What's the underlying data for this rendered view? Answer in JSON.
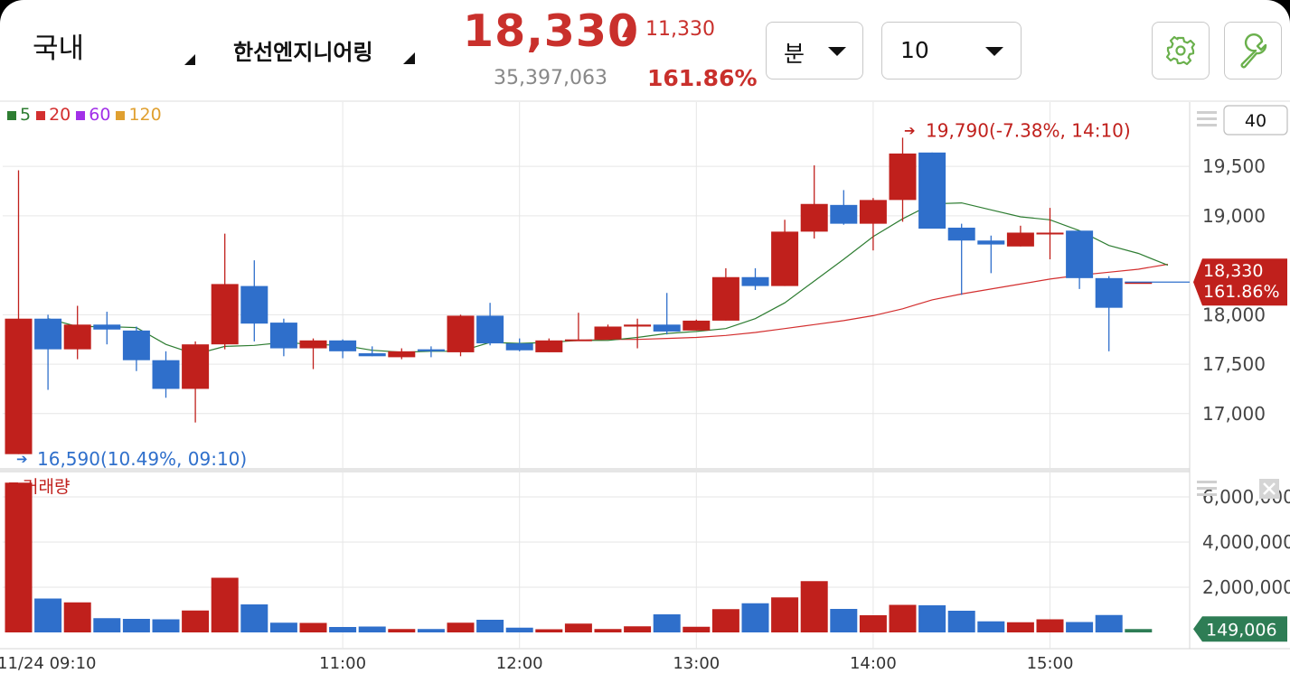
{
  "header": {
    "market": "국내",
    "stock_name": "한선엔지니어링",
    "price": "18,330",
    "change_arrow": "▲",
    "change": "11,330",
    "volume": "35,397,063",
    "change_pct": "161.86%",
    "interval_unit": "분",
    "interval_value": "10",
    "settings_icon": "gear-icon",
    "tools_icon": "wrench-icon"
  },
  "colors": {
    "up": "#c0201c",
    "down": "#2f6fcb",
    "ma5": "#2e7d32",
    "ma20": "#d32f2f",
    "ma60": "#a230e8",
    "ma120": "#e0a030",
    "volume_badge": "#2e7d55"
  },
  "chart_data": {
    "type": "candlestick",
    "interval": "10min",
    "date_label": "11/24 09:10",
    "x_ticks": [
      "11:00",
      "12:00",
      "13:00",
      "14:00",
      "15:00"
    ],
    "price_axis": {
      "ticks": [
        "19,500",
        "19,000",
        "18,000",
        "17,500",
        "17,000"
      ],
      "tick_values": [
        19500,
        19000,
        18000,
        17500,
        17000
      ],
      "range": [
        16450,
        20150
      ]
    },
    "volume_axis": {
      "ticks": [
        "6,000,000",
        "4,000,000",
        "2,000,000"
      ],
      "tick_values": [
        6000000,
        4000000,
        2000000
      ],
      "range": [
        0,
        7000000
      ]
    },
    "legend": [
      {
        "label": "5",
        "color": "#2e7d32"
      },
      {
        "label": "20",
        "color": "#d32f2f"
      },
      {
        "label": "60",
        "color": "#a230e8"
      },
      {
        "label": "120",
        "color": "#e0a030"
      }
    ],
    "count_box": "40",
    "volume_title": "거래량",
    "high_annotation": "19,790(-7.38%, 14:10)",
    "low_annotation": "16,590(10.49%, 09:10)",
    "last_price_badge": [
      "18,330",
      "161.86%"
    ],
    "last_volume_badge": "149,006",
    "candles": [
      {
        "o": 16590,
        "h": 19460,
        "l": 16590,
        "c": 17960,
        "v": 6630000
      },
      {
        "o": 17960,
        "h": 18000,
        "l": 17240,
        "c": 17650,
        "v": 1500000
      },
      {
        "o": 17650,
        "h": 18090,
        "l": 17550,
        "c": 17900,
        "v": 1330000
      },
      {
        "o": 17900,
        "h": 18030,
        "l": 17700,
        "c": 17850,
        "v": 630000
      },
      {
        "o": 17840,
        "h": 17880,
        "l": 17430,
        "c": 17540,
        "v": 600000
      },
      {
        "o": 17540,
        "h": 17630,
        "l": 17160,
        "c": 17250,
        "v": 580000
      },
      {
        "o": 17250,
        "h": 17730,
        "l": 16910,
        "c": 17700,
        "v": 970000
      },
      {
        "o": 17700,
        "h": 18820,
        "l": 17650,
        "c": 18310,
        "v": 2420000
      },
      {
        "o": 18290,
        "h": 18550,
        "l": 17730,
        "c": 17910,
        "v": 1240000
      },
      {
        "o": 17920,
        "h": 17960,
        "l": 17580,
        "c": 17660,
        "v": 430000
      },
      {
        "o": 17660,
        "h": 17760,
        "l": 17450,
        "c": 17740,
        "v": 420000
      },
      {
        "o": 17740,
        "h": 17750,
        "l": 17560,
        "c": 17630,
        "v": 240000
      },
      {
        "o": 17610,
        "h": 17680,
        "l": 17580,
        "c": 17580,
        "v": 260000
      },
      {
        "o": 17570,
        "h": 17660,
        "l": 17550,
        "c": 17630,
        "v": 150000
      },
      {
        "o": 17650,
        "h": 17680,
        "l": 17570,
        "c": 17630,
        "v": 150000
      },
      {
        "o": 17620,
        "h": 18000,
        "l": 17580,
        "c": 17990,
        "v": 430000
      },
      {
        "o": 17990,
        "h": 18120,
        "l": 17690,
        "c": 17710,
        "v": 560000
      },
      {
        "o": 17710,
        "h": 17760,
        "l": 17630,
        "c": 17640,
        "v": 210000
      },
      {
        "o": 17620,
        "h": 17760,
        "l": 17620,
        "c": 17740,
        "v": 140000
      },
      {
        "o": 17740,
        "h": 18020,
        "l": 17740,
        "c": 17750,
        "v": 390000
      },
      {
        "o": 17750,
        "h": 17900,
        "l": 17750,
        "c": 17880,
        "v": 150000
      },
      {
        "o": 17880,
        "h": 17960,
        "l": 17660,
        "c": 17900,
        "v": 270000
      },
      {
        "o": 17900,
        "h": 18220,
        "l": 17800,
        "c": 17830,
        "v": 800000
      },
      {
        "o": 17840,
        "h": 17950,
        "l": 17840,
        "c": 17940,
        "v": 250000
      },
      {
        "o": 17940,
        "h": 18470,
        "l": 17940,
        "c": 18380,
        "v": 1030000
      },
      {
        "o": 18380,
        "h": 18470,
        "l": 18250,
        "c": 18290,
        "v": 1290000
      },
      {
        "o": 18290,
        "h": 18960,
        "l": 18290,
        "c": 18840,
        "v": 1550000
      },
      {
        "o": 18840,
        "h": 19510,
        "l": 18770,
        "c": 19120,
        "v": 2270000
      },
      {
        "o": 19110,
        "h": 19260,
        "l": 18910,
        "c": 18920,
        "v": 1040000
      },
      {
        "o": 18920,
        "h": 19180,
        "l": 18650,
        "c": 19160,
        "v": 760000
      },
      {
        "o": 19160,
        "h": 19790,
        "l": 18940,
        "c": 19630,
        "v": 1220000
      },
      {
        "o": 19640,
        "h": 19640,
        "l": 18880,
        "c": 18870,
        "v": 1200000
      },
      {
        "o": 18880,
        "h": 18920,
        "l": 18200,
        "c": 18750,
        "v": 960000
      },
      {
        "o": 18750,
        "h": 18800,
        "l": 18420,
        "c": 18710,
        "v": 490000
      },
      {
        "o": 18690,
        "h": 18900,
        "l": 18690,
        "c": 18830,
        "v": 450000
      },
      {
        "o": 18830,
        "h": 19080,
        "l": 18560,
        "c": 18830,
        "v": 580000
      },
      {
        "o": 18850,
        "h": 18850,
        "l": 18260,
        "c": 18370,
        "v": 460000
      },
      {
        "o": 18370,
        "h": 18390,
        "l": 17630,
        "c": 18070,
        "v": 770000
      },
      {
        "o": 18330,
        "h": 18330,
        "l": 18330,
        "c": 18330,
        "v": 149006
      }
    ],
    "ma5": [
      [
        1,
        17960
      ],
      [
        2,
        17880
      ],
      [
        3,
        17880
      ],
      [
        4,
        17870
      ],
      [
        5,
        17700
      ],
      [
        6,
        17600
      ],
      [
        7,
        17680
      ],
      [
        8,
        17690
      ],
      [
        9,
        17720
      ],
      [
        10,
        17700
      ],
      [
        11,
        17690
      ],
      [
        12,
        17640
      ],
      [
        13,
        17620
      ],
      [
        14,
        17630
      ],
      [
        15,
        17630
      ],
      [
        16,
        17720
      ],
      [
        17,
        17710
      ],
      [
        18,
        17720
      ],
      [
        19,
        17740
      ],
      [
        20,
        17740
      ],
      [
        21,
        17770
      ],
      [
        22,
        17810
      ],
      [
        23,
        17830
      ],
      [
        24,
        17860
      ],
      [
        25,
        17960
      ],
      [
        26,
        18120
      ],
      [
        27,
        18340
      ],
      [
        28,
        18560
      ],
      [
        29,
        18790
      ],
      [
        30,
        18970
      ],
      [
        31,
        19120
      ],
      [
        32,
        19130
      ],
      [
        33,
        19060
      ],
      [
        34,
        18990
      ],
      [
        35,
        18960
      ],
      [
        36,
        18850
      ],
      [
        37,
        18700
      ],
      [
        38,
        18620
      ],
      [
        39,
        18500
      ]
    ],
    "ma20": [
      [
        19,
        17740
      ],
      [
        20,
        17750
      ],
      [
        21,
        17750
      ],
      [
        22,
        17760
      ],
      [
        23,
        17770
      ],
      [
        24,
        17790
      ],
      [
        25,
        17820
      ],
      [
        26,
        17860
      ],
      [
        27,
        17900
      ],
      [
        28,
        17940
      ],
      [
        29,
        17990
      ],
      [
        30,
        18060
      ],
      [
        31,
        18150
      ],
      [
        32,
        18210
      ],
      [
        33,
        18260
      ],
      [
        34,
        18310
      ],
      [
        35,
        18360
      ],
      [
        36,
        18400
      ],
      [
        37,
        18430
      ],
      [
        38,
        18460
      ],
      [
        39,
        18510
      ]
    ]
  }
}
